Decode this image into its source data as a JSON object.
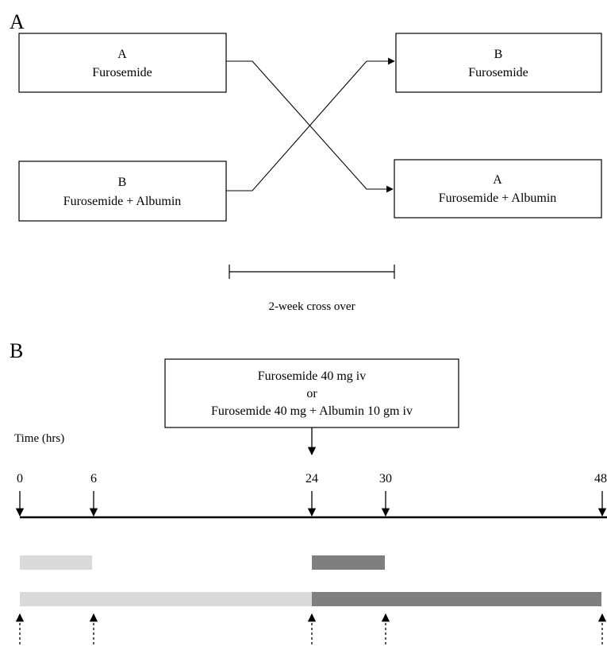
{
  "panel_a": {
    "label": "A",
    "box_left_top": {
      "line1": "A",
      "line2": "Furosemide"
    },
    "box_left_bottom": {
      "line1": "B",
      "line2": "Furosemide  + Albumin"
    },
    "box_right_top": {
      "line1": "B",
      "line2": "Furosemide"
    },
    "box_right_bottom": {
      "line1": "A",
      "line2": "Furosemide  + Albumin"
    },
    "crossover_label": "2-week cross over"
  },
  "panel_b": {
    "label": "B",
    "dose_box": {
      "line1": "Furosemide  40 mg  iv",
      "line2": "or",
      "line3": "Furosemide  40 mg  + Albumin  10 gm  iv"
    },
    "time_label": "Time  (hrs)",
    "time_ticks": [
      "0",
      "6",
      "24",
      "30",
      "48"
    ],
    "colors": {
      "light_bar": "#d9d9d9",
      "dark_bar": "#7f7f7f"
    }
  }
}
